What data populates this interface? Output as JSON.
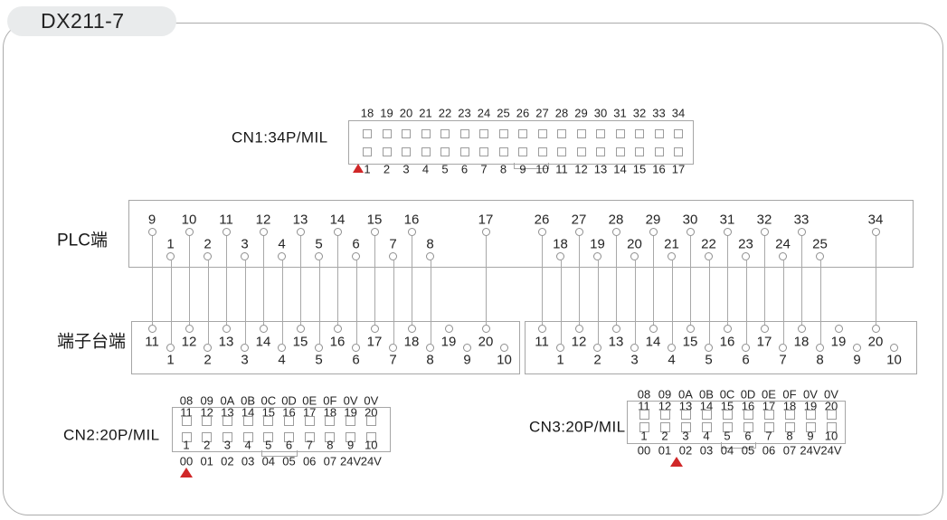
{
  "title": "DX211-7",
  "colors": {
    "accent_red": "#d02728",
    "line_gray": "#a8a8a8",
    "border_gray": "#a6a6a6",
    "text": "#1f1f1f",
    "pill_bg": "#e9ebec"
  },
  "cn1": {
    "label": "CN1:34P/MIL",
    "top_pins": [
      "18",
      "19",
      "20",
      "21",
      "22",
      "23",
      "24",
      "25",
      "26",
      "27",
      "28",
      "29",
      "30",
      "31",
      "32",
      "33",
      "34"
    ],
    "bottom_pins": [
      "1",
      "2",
      "3",
      "4",
      "5",
      "6",
      "7",
      "8",
      "9",
      "10",
      "11",
      "12",
      "13",
      "14",
      "15",
      "16",
      "17"
    ]
  },
  "plc": {
    "label": "PLC端"
  },
  "terminal": {
    "label": "端子台端"
  },
  "wiring_groups": [
    {
      "terminals_top": [
        "11",
        "12",
        "13",
        "14",
        "15",
        "16",
        "17",
        "18",
        "19",
        "20"
      ],
      "terminals_bottom": [
        "1",
        "2",
        "3",
        "4",
        "5",
        "6",
        "7",
        "8",
        "9",
        "10"
      ],
      "plc_pins_top": [
        {
          "label": "9",
          "terminal": "11"
        },
        {
          "label": "10",
          "terminal": "12"
        },
        {
          "label": "11",
          "terminal": "13"
        },
        {
          "label": "12",
          "terminal": "14"
        },
        {
          "label": "13",
          "terminal": "15"
        },
        {
          "label": "14",
          "terminal": "16"
        },
        {
          "label": "15",
          "terminal": "17"
        },
        {
          "label": "16",
          "terminal": "18"
        },
        {
          "label": "17",
          "terminal": "20"
        }
      ],
      "plc_pins_bottom": [
        {
          "label": "1",
          "terminal": "1"
        },
        {
          "label": "2",
          "terminal": "2"
        },
        {
          "label": "3",
          "terminal": "3"
        },
        {
          "label": "4",
          "terminal": "4"
        },
        {
          "label": "5",
          "terminal": "5"
        },
        {
          "label": "6",
          "terminal": "6"
        },
        {
          "label": "7",
          "terminal": "7"
        },
        {
          "label": "8",
          "terminal": "8"
        }
      ]
    },
    {
      "terminals_top": [
        "11",
        "12",
        "13",
        "14",
        "15",
        "16",
        "17",
        "18",
        "19",
        "20"
      ],
      "terminals_bottom": [
        "1",
        "2",
        "3",
        "4",
        "5",
        "6",
        "7",
        "8",
        "9",
        "10"
      ],
      "plc_pins_top": [
        {
          "label": "26",
          "terminal": "11"
        },
        {
          "label": "27",
          "terminal": "12"
        },
        {
          "label": "28",
          "terminal": "13"
        },
        {
          "label": "29",
          "terminal": "14"
        },
        {
          "label": "30",
          "terminal": "15"
        },
        {
          "label": "31",
          "terminal": "16"
        },
        {
          "label": "32",
          "terminal": "17"
        },
        {
          "label": "33",
          "terminal": "18"
        },
        {
          "label": "34",
          "terminal": "20"
        }
      ],
      "plc_pins_bottom": [
        {
          "label": "18",
          "terminal": "1"
        },
        {
          "label": "19",
          "terminal": "2"
        },
        {
          "label": "20",
          "terminal": "3"
        },
        {
          "label": "21",
          "terminal": "4"
        },
        {
          "label": "22",
          "terminal": "5"
        },
        {
          "label": "23",
          "terminal": "6"
        },
        {
          "label": "24",
          "terminal": "7"
        },
        {
          "label": "25",
          "terminal": "8"
        }
      ]
    }
  ],
  "cn2": {
    "label": "CN2:20P/MIL",
    "top_signals": [
      "08",
      "09",
      "0A",
      "0B",
      "0C",
      "0D",
      "0E",
      "0F",
      "0V",
      "0V"
    ],
    "top_pins": [
      "11",
      "12",
      "13",
      "14",
      "15",
      "16",
      "17",
      "18",
      "19",
      "20"
    ],
    "bottom_pins": [
      "1",
      "2",
      "3",
      "4",
      "5",
      "6",
      "7",
      "8",
      "9",
      "10"
    ],
    "bottom_signals": [
      "00",
      "01",
      "02",
      "03",
      "04",
      "05",
      "06",
      "07",
      "24V",
      "24V"
    ]
  },
  "cn3": {
    "label": "CN3:20P/MIL",
    "top_signals": [
      "08",
      "09",
      "0A",
      "0B",
      "0C",
      "0D",
      "0E",
      "0F",
      "0V",
      "0V"
    ],
    "top_pins": [
      "11",
      "12",
      "13",
      "14",
      "15",
      "16",
      "17",
      "18",
      "19",
      "20"
    ],
    "bottom_pins": [
      "1",
      "2",
      "3",
      "4",
      "5",
      "6",
      "7",
      "8",
      "9",
      "10"
    ],
    "bottom_signals": [
      "00",
      "01",
      "02",
      "03",
      "04",
      "05",
      "06",
      "07",
      "24V",
      "24V"
    ]
  }
}
